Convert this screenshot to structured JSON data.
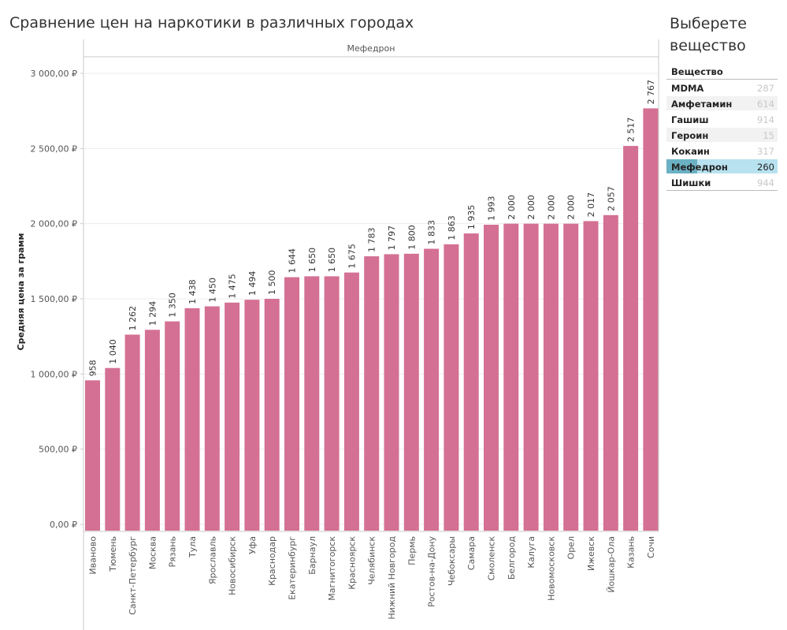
{
  "page": {
    "title": "Сравнение цен на наркотики в различных городах",
    "panel_title": "Выберете вещество"
  },
  "filter": {
    "header": "Вещество",
    "items": [
      {
        "name": "MDMA",
        "count": "287",
        "selected": false
      },
      {
        "name": "Амфетамин",
        "count": "614",
        "selected": false
      },
      {
        "name": "Гашиш",
        "count": "914",
        "selected": false
      },
      {
        "name": "Героин",
        "count": "15",
        "selected": false
      },
      {
        "name": "Кокаин",
        "count": "317",
        "selected": false
      },
      {
        "name": "Мефедрон",
        "count": "260",
        "selected": true
      },
      {
        "name": "Шишки",
        "count": "944",
        "selected": false
      }
    ]
  },
  "colors": {
    "bar": "#d47094",
    "selected_fill": "#b8e2ef",
    "selected_fill_dark": "#6bb1c4",
    "row_alt": "#f2f2f2"
  },
  "chart_data": {
    "type": "bar",
    "pane_header": "Мефедрон",
    "ylabel": "Средняя цена за грамм",
    "xlabel": "",
    "ylim": [
      0,
      3000
    ],
    "yticks": [
      0,
      500,
      1000,
      1500,
      2000,
      2500,
      3000
    ],
    "ytick_labels": [
      "0,00 ₽",
      "500,00 ₽",
      "1 000,00 ₽",
      "1 500,00 ₽",
      "2 000,00 ₽",
      "2 500,00 ₽",
      "3 000,00 ₽"
    ],
    "categories": [
      "Иваново",
      "Тюмень",
      "Санкт-Петербург",
      "Москва",
      "Рязань",
      "Тула",
      "Ярославль",
      "Новосибирск",
      "Уфа",
      "Краснодар",
      "Екатеринбург",
      "Барнаул",
      "Магнитогорск",
      "Красноярск",
      "Челябинск",
      "Нижний Новгород",
      "Пермь",
      "Ростов-на-Дону",
      "Чебоксары",
      "Самара",
      "Смоленск",
      "Белгород",
      "Калуга",
      "Новомосковск",
      "Орел",
      "Ижевск",
      "Йошкар-Ола",
      "Казань",
      "Сочи"
    ],
    "values": [
      958,
      1040,
      1262,
      1294,
      1350,
      1438,
      1450,
      1475,
      1494,
      1500,
      1644,
      1650,
      1650,
      1675,
      1783,
      1797,
      1800,
      1833,
      1863,
      1935,
      1993,
      2000,
      2000,
      2000,
      2000,
      2017,
      2057,
      2517,
      2767
    ],
    "value_labels": [
      "958",
      "1 040",
      "1 262",
      "1 294",
      "1 350",
      "1 438",
      "1 450",
      "1 475",
      "1 494",
      "1 500",
      "1 644",
      "1 650",
      "1 650",
      "1 675",
      "1 783",
      "1 797",
      "1 800",
      "1 833",
      "1 863",
      "1 935",
      "1 993",
      "2 000",
      "2 000",
      "2 000",
      "2 000",
      "2 017",
      "2 057",
      "2 517",
      "2 767"
    ],
    "grid": true
  }
}
